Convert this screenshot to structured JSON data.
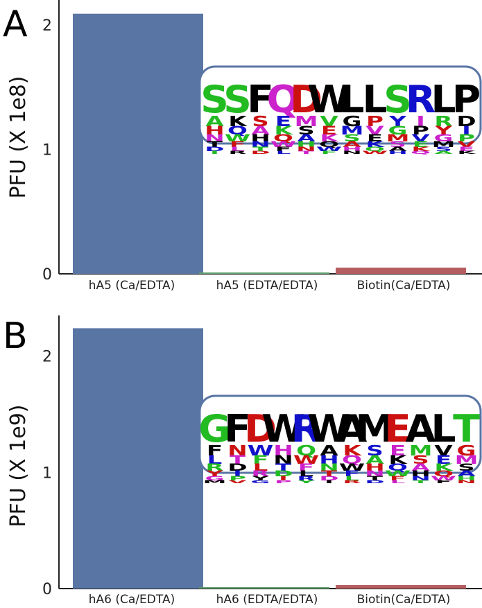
{
  "chart_data": [
    {
      "type": "bar",
      "panel": "A",
      "ylabel": "PFU (X 1e8)",
      "ylim": [
        0,
        2.2
      ],
      "yticks": [
        0,
        1,
        2
      ],
      "categories": [
        "hA5 (Ca/EDTA)",
        "hA5 (EDTA/EDTA)",
        "Biotin(Ca/EDTA)"
      ],
      "values": [
        2.09,
        0.01,
        0.05
      ],
      "colors": [
        "#5975a4",
        "#5f9e6e",
        "#b55d60"
      ],
      "logo": {
        "sequence": [
          "S",
          "S",
          "F",
          "Q",
          "D",
          "W",
          "L",
          "L",
          "S",
          "R",
          "L",
          "P"
        ],
        "colors": [
          "#22bb22",
          "#22bb22",
          "#000000",
          "#cc22cc",
          "#cc1111",
          "#000000",
          "#000000",
          "#000000",
          "#22bb22",
          "#1111cc",
          "#000000",
          "#000000"
        ]
      }
    },
    {
      "type": "bar",
      "panel": "B",
      "ylabel": "PFU (X 1e9)",
      "ylim": [
        0,
        2.35
      ],
      "yticks": [
        0,
        1,
        2
      ],
      "categories": [
        "hA6 (Ca/EDTA)",
        "hA6 (EDTA/EDTA)",
        "Biotin(Ca/EDTA)"
      ],
      "values": [
        2.24,
        0.005,
        0.03
      ],
      "colors": [
        "#5975a4",
        "#5f9e6e",
        "#b55d60"
      ],
      "logo": {
        "sequence": [
          "G",
          "F",
          "D",
          "W",
          "R",
          "W",
          "A",
          "M",
          "E",
          "A",
          "L",
          "T"
        ],
        "colors": [
          "#22bb22",
          "#000000",
          "#cc1111",
          "#000000",
          "#1111cc",
          "#000000",
          "#000000",
          "#000000",
          "#cc1111",
          "#000000",
          "#000000",
          "#22bb22"
        ]
      }
    }
  ]
}
